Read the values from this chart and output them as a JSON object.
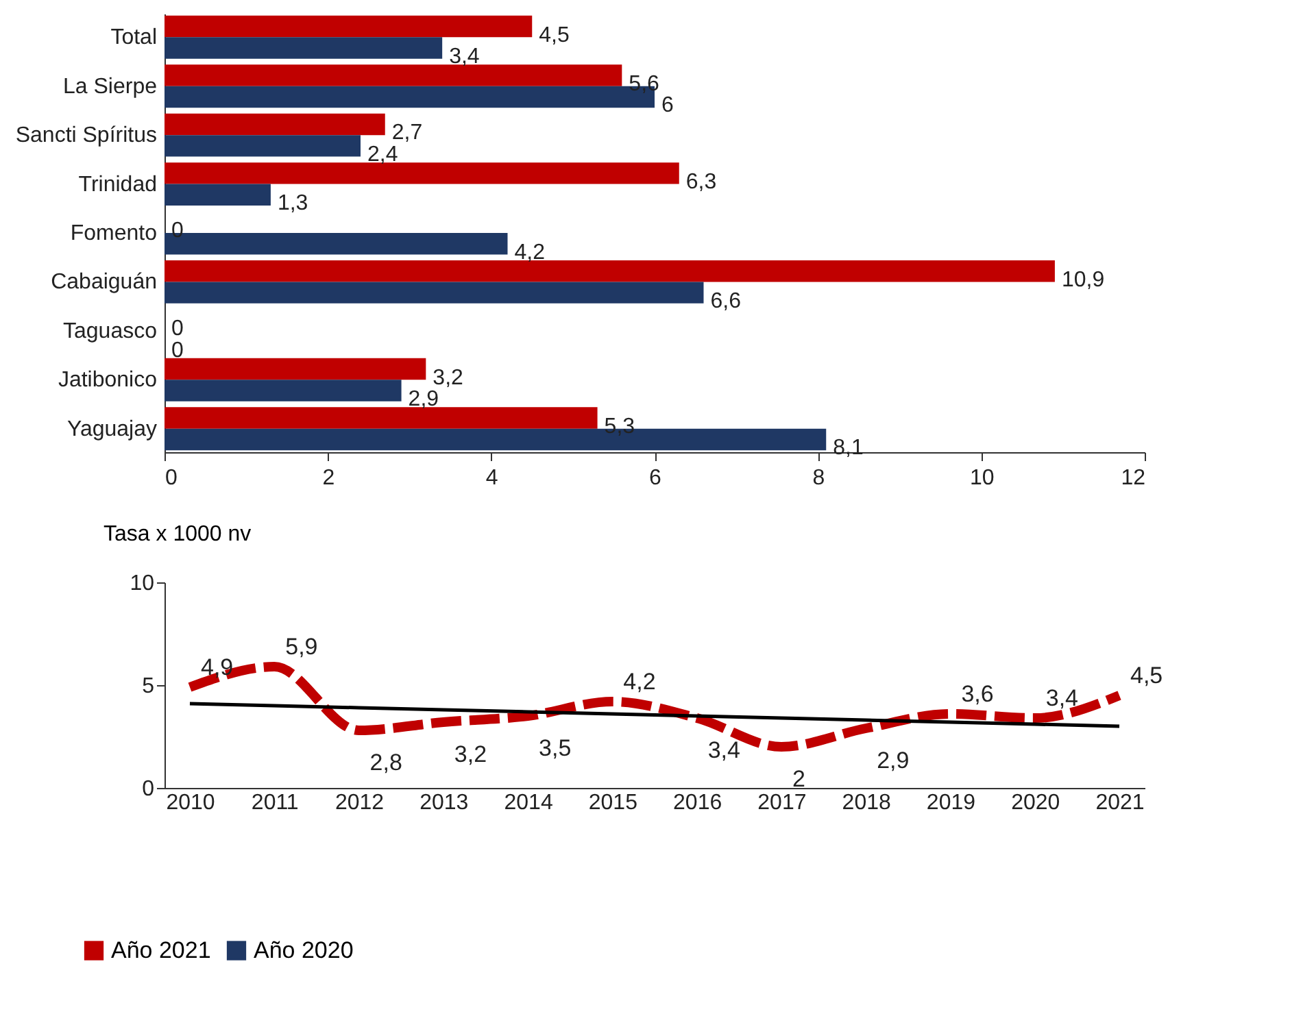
{
  "chart_data": [
    {
      "type": "bar",
      "orientation": "horizontal",
      "categories": [
        "Total",
        "La Sierpe",
        "Sancti Spíritus",
        "Trinidad",
        "Fomento",
        "Cabaiguán",
        "Taguasco",
        "Jatibonico",
        "Yaguajay"
      ],
      "series": [
        {
          "name": "Año 2021",
          "color": "#c00000",
          "values": [
            4.5,
            5.6,
            2.7,
            6.3,
            0,
            10.9,
            0,
            3.2,
            5.3
          ],
          "value_labels": [
            "4,5",
            "5,6",
            "2,7",
            "6,3",
            "0",
            "10,9",
            "0",
            "3,2",
            "5,3"
          ]
        },
        {
          "name": "Año 2020",
          "color": "#1f3864",
          "values": [
            3.4,
            6,
            2.4,
            1.3,
            4.2,
            6.6,
            0,
            2.9,
            8.1
          ],
          "value_labels": [
            "3,4",
            "6",
            "2,4",
            "1,3",
            "4,2",
            "6,6",
            "0",
            "2,9",
            "8,1"
          ]
        }
      ],
      "xlim": [
        0,
        12
      ],
      "xticks": [
        0,
        2,
        4,
        6,
        8,
        10,
        12
      ],
      "grid": false,
      "legend": "bottom"
    },
    {
      "type": "line",
      "ylabel": "Tasa x 1000 nv",
      "categories": [
        "2010",
        "2011",
        "2012",
        "2013",
        "2014",
        "2015",
        "2016",
        "2017",
        "2018",
        "2019",
        "2020",
        "2021"
      ],
      "series": [
        {
          "color": "#c00000",
          "line_style": "dashed",
          "values": [
            4.9,
            5.9,
            2.8,
            3.2,
            3.5,
            4.2,
            3.4,
            2,
            2.9,
            3.6,
            3.4,
            4.5
          ],
          "value_labels": [
            "4,9",
            "5,9",
            "2,8",
            "3,2",
            "3,5",
            "4,2",
            "3,4",
            "2",
            "2,9",
            "3,6",
            "3,4",
            "4,5"
          ]
        },
        {
          "type": "line",
          "color": "#000000",
          "line_style": "solid",
          "values": [
            4.1,
            4.0,
            3.9,
            3.8,
            3.7,
            3.6,
            3.5,
            3.4,
            3.3,
            3.2,
            3.1,
            3.0
          ]
        }
      ],
      "ylim": [
        0,
        10
      ],
      "yticks": [
        0,
        5,
        10
      ],
      "grid": false
    }
  ]
}
